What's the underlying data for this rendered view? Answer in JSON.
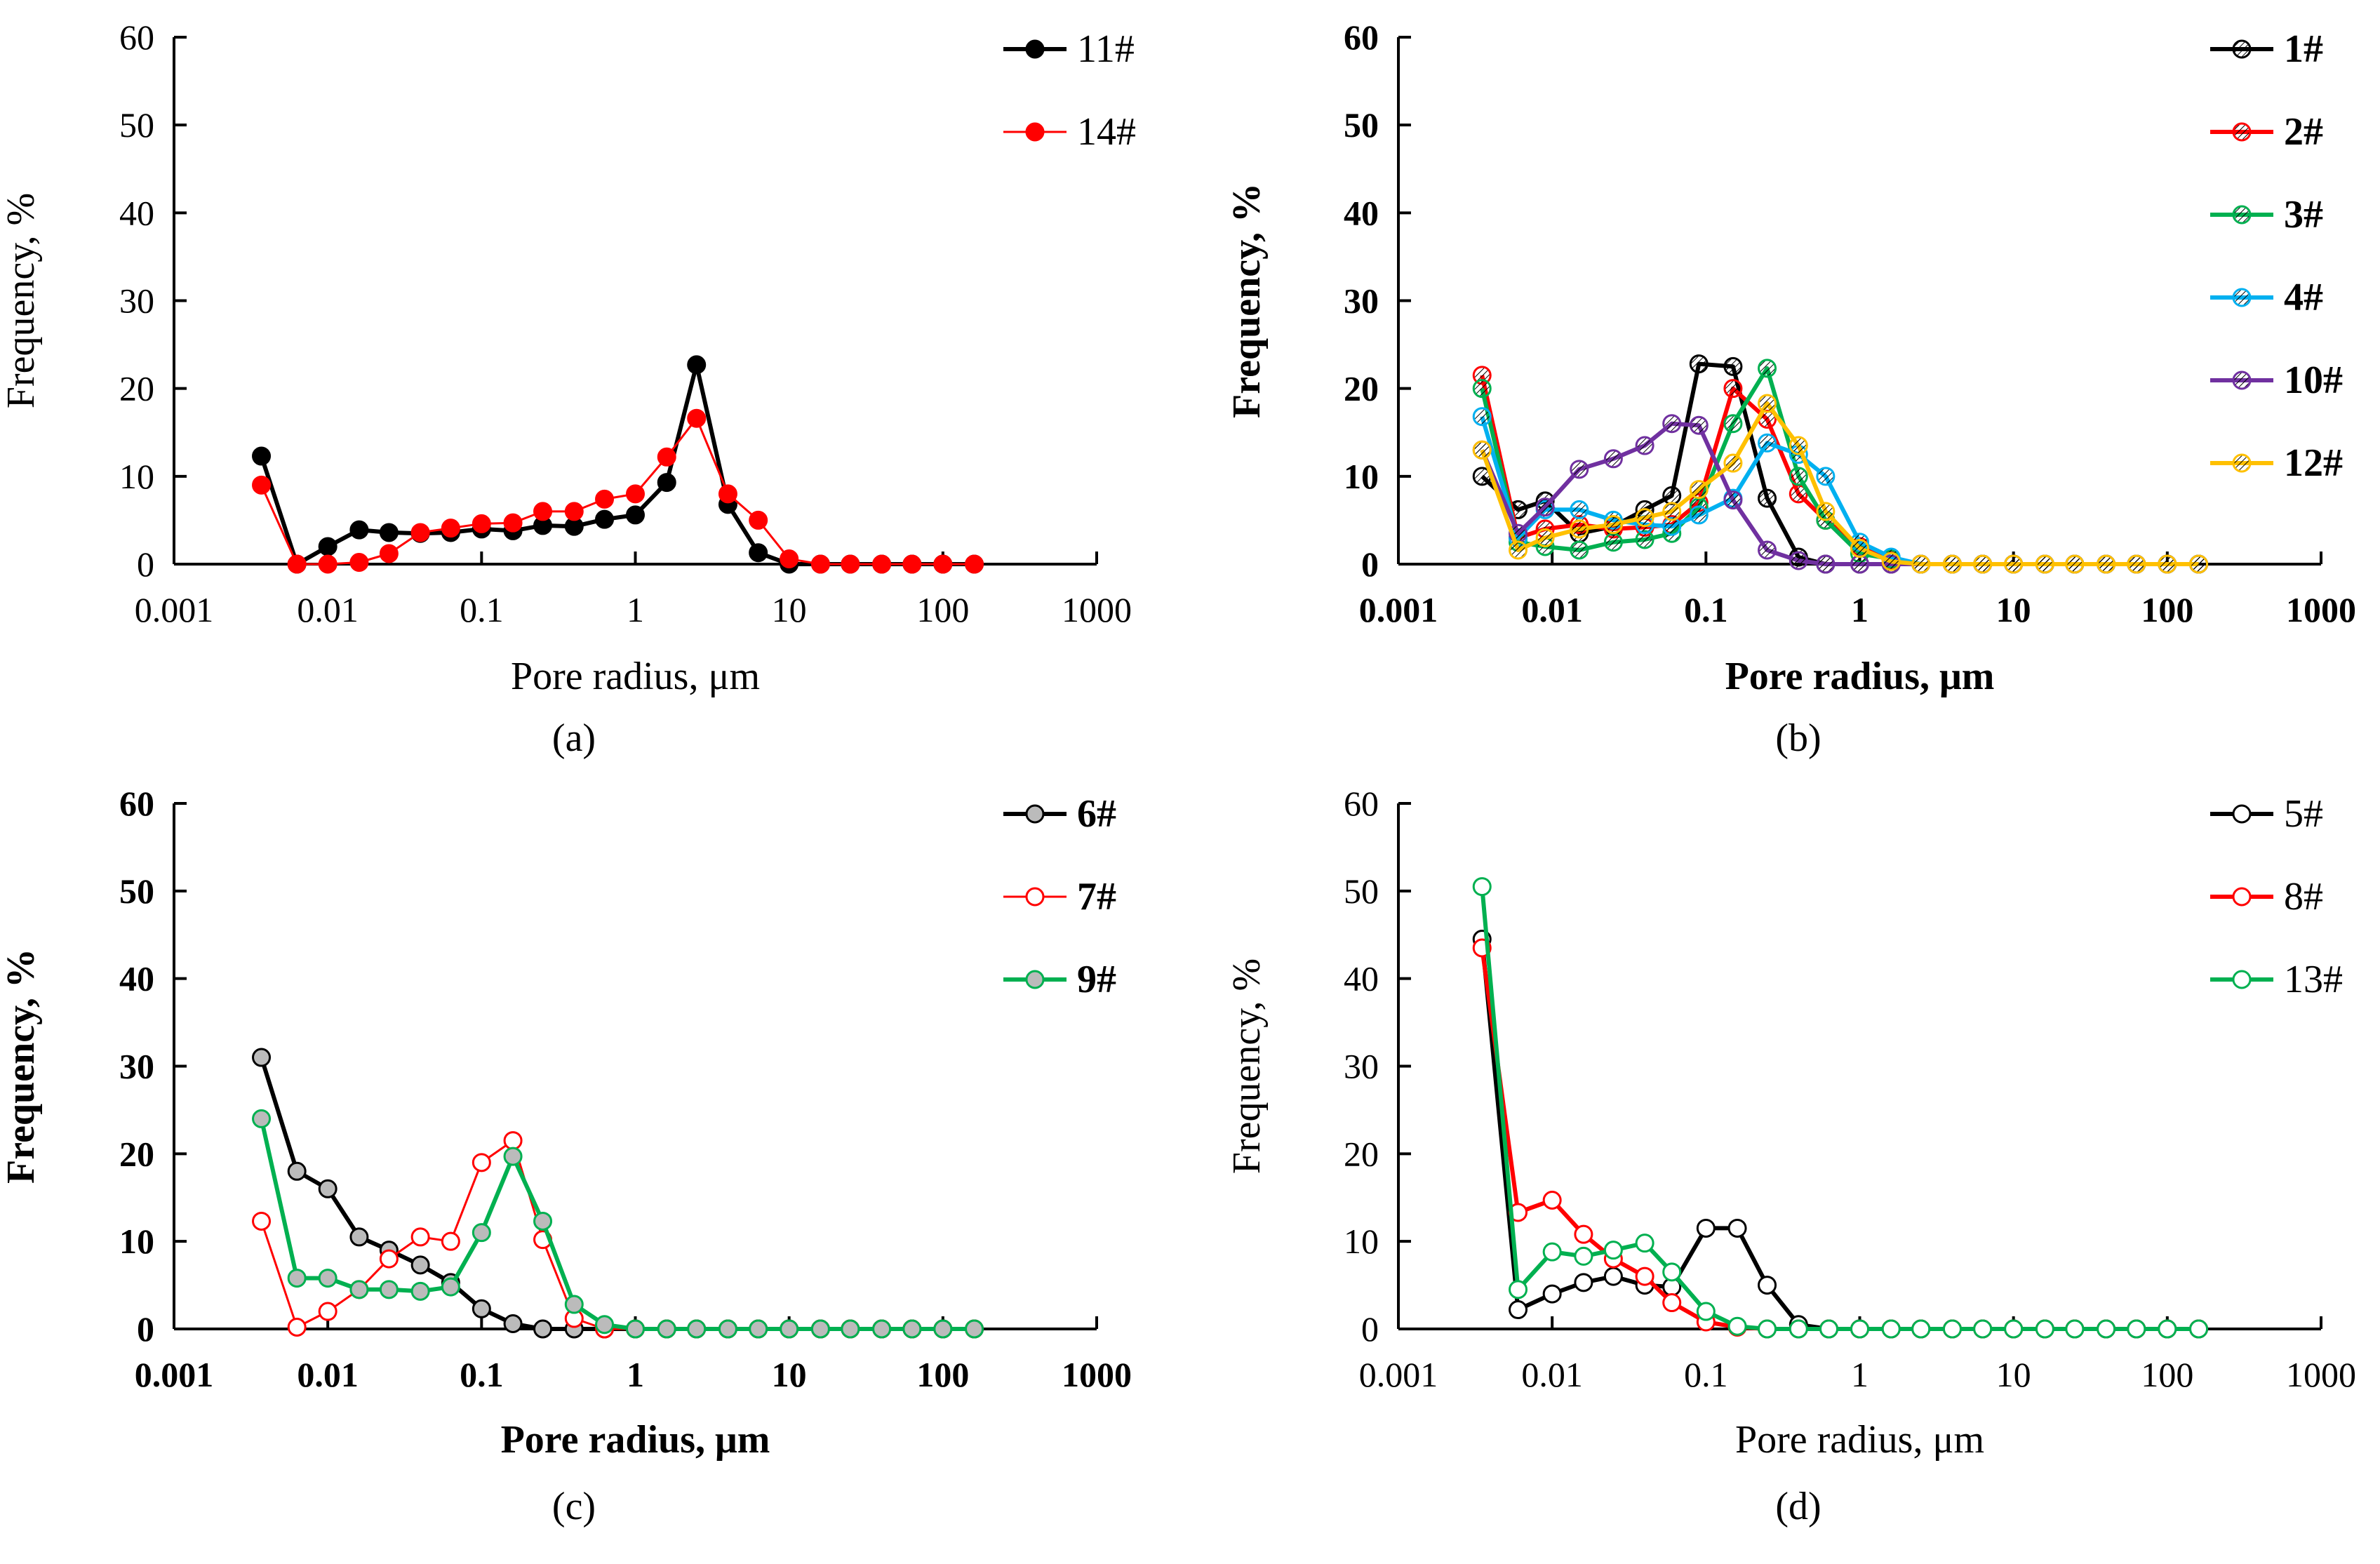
{
  "chart_data": [
    {
      "type": "line",
      "panel_label": "(a)",
      "panel_letter": "a",
      "xlabel": "Pore radius, μm",
      "ylabel": "Frequency, %",
      "xscale": "log",
      "xlim": [
        0.001,
        1000
      ],
      "ylim": [
        0,
        60
      ],
      "xticks": [
        "0.001",
        "0.01",
        "0.1",
        "1",
        "10",
        "100",
        "1000"
      ],
      "yticks": [
        "0",
        "10",
        "20",
        "30",
        "40",
        "50",
        "60"
      ],
      "legend_position": "top-right",
      "grid": false,
      "bold_axes": false,
      "x": [
        0.0037,
        0.0063,
        0.01,
        0.016,
        0.025,
        0.04,
        0.063,
        0.1,
        0.16,
        0.25,
        0.4,
        0.63,
        1.0,
        1.6,
        2.5,
        4.0,
        6.3,
        10,
        16,
        25,
        40,
        63,
        100,
        160
      ],
      "series": [
        {
          "name": "11#",
          "color": "#000000",
          "bold": true,
          "marker": "filled",
          "values": [
            12.3,
            0,
            2.0,
            3.9,
            3.6,
            3.5,
            3.6,
            4.0,
            3.8,
            4.4,
            4.3,
            5.1,
            5.6,
            9.3,
            22.7,
            6.8,
            1.3,
            0,
            0,
            0,
            0,
            0,
            0,
            0
          ]
        },
        {
          "name": "14#",
          "color": "#ff0000",
          "bold": false,
          "marker": "filled",
          "values": [
            9.0,
            0,
            0,
            0.2,
            1.2,
            3.6,
            4.1,
            4.6,
            4.7,
            6.0,
            6.0,
            7.4,
            8.0,
            12.2,
            16.6,
            8.0,
            5.0,
            0.6,
            0,
            0,
            0,
            0,
            0,
            0
          ]
        }
      ]
    },
    {
      "type": "line",
      "panel_label": "(b)",
      "panel_letter": "b",
      "xlabel": "Pore radius, μm",
      "ylabel": "Frequency, %",
      "xscale": "log",
      "xlim": [
        0.001,
        1000
      ],
      "ylim": [
        0,
        60
      ],
      "xticks": [
        "0.001",
        "0.01",
        "0.1",
        "1",
        "10",
        "100",
        "1000"
      ],
      "yticks": [
        "0",
        "10",
        "20",
        "30",
        "40",
        "50",
        "60"
      ],
      "legend_position": "top-right",
      "grid": false,
      "bold_axes": true,
      "x": [
        0.0035,
        0.006,
        0.009,
        0.015,
        0.025,
        0.04,
        0.06,
        0.09,
        0.15,
        0.25,
        0.4,
        0.6,
        1.0,
        1.6,
        2.5,
        4.0,
        6.3,
        10,
        16,
        25,
        40,
        63,
        100,
        160
      ],
      "series": [
        {
          "name": "1#",
          "color": "#000000",
          "bold": true,
          "marker": "hatched",
          "values": [
            10,
            6.2,
            7.2,
            3.5,
            4.3,
            6.2,
            7.8,
            22.8,
            22.5,
            7.5,
            0.8,
            0,
            0,
            0,
            0,
            0,
            0,
            0,
            0,
            0,
            0,
            0,
            0,
            0
          ]
        },
        {
          "name": "2#",
          "color": "#ff0000",
          "bold": true,
          "marker": "hatched",
          "values": [
            21.5,
            3,
            4.0,
            4.5,
            4.0,
            4.2,
            4.5,
            7.0,
            20.0,
            16.5,
            8.0,
            5.0,
            2.0,
            0.5,
            0,
            0,
            0,
            0,
            0,
            0,
            0,
            0,
            0,
            0
          ]
        },
        {
          "name": "3#",
          "color": "#00b050",
          "bold": true,
          "marker": "hatched",
          "values": [
            20,
            2.5,
            2.0,
            1.6,
            2.5,
            2.8,
            3.5,
            6.5,
            16.0,
            22.3,
            10.0,
            5.0,
            1.2,
            0.6,
            0,
            0,
            0,
            0,
            0,
            0,
            0,
            0,
            0,
            0
          ]
        },
        {
          "name": "4#",
          "color": "#00b0f0",
          "bold": true,
          "marker": "hatched",
          "values": [
            16.8,
            3,
            6.2,
            6.2,
            5.0,
            4.5,
            4.3,
            5.6,
            7.5,
            13.8,
            12.5,
            10.0,
            2.5,
            0.8,
            0,
            0,
            0,
            0,
            0,
            0,
            0,
            0,
            0,
            0
          ]
        },
        {
          "name": "10#",
          "color": "#7030a0",
          "bold": true,
          "marker": "hatched",
          "values": [
            13,
            3.5,
            6.5,
            10.8,
            12.0,
            13.5,
            16.0,
            15.8,
            7.3,
            1.6,
            0.4,
            0,
            0,
            0,
            0,
            0,
            0,
            0,
            0,
            0,
            0,
            0,
            0,
            0
          ]
        },
        {
          "name": "12#",
          "color": "#ffc000",
          "bold": true,
          "marker": "hatched",
          "values": [
            13,
            1.6,
            3.0,
            4.0,
            4.5,
            5.3,
            6.0,
            8.5,
            11.5,
            18.3,
            13.5,
            6.0,
            1.8,
            0.3,
            0,
            0,
            0,
            0,
            0,
            0,
            0,
            0,
            0,
            0
          ]
        }
      ]
    },
    {
      "type": "line",
      "panel_label": "(c)",
      "panel_letter": "c",
      "xlabel": "Pore radius, μm",
      "ylabel": "Frequency, %",
      "xscale": "log",
      "xlim": [
        0.001,
        1000
      ],
      "ylim": [
        0,
        60
      ],
      "xticks": [
        "0.001",
        "0.01",
        "0.1",
        "1",
        "10",
        "100",
        "1000"
      ],
      "yticks": [
        "0",
        "10",
        "20",
        "30",
        "40",
        "50",
        "60"
      ],
      "legend_position": "top-right",
      "grid": false,
      "bold_axes": true,
      "x": [
        0.0037,
        0.0063,
        0.01,
        0.016,
        0.025,
        0.04,
        0.063,
        0.1,
        0.16,
        0.25,
        0.4,
        0.63,
        1.0,
        1.6,
        2.5,
        4.0,
        6.3,
        10,
        16,
        25,
        40,
        63,
        100,
        160
      ],
      "series": [
        {
          "name": "6#",
          "color": "#000000",
          "bold": true,
          "marker": "dotted",
          "values": [
            31,
            18,
            16,
            10.5,
            9,
            7.3,
            5.3,
            2.3,
            0.6,
            0,
            0,
            0,
            0,
            0,
            0,
            0,
            0,
            0,
            0,
            0,
            0,
            0,
            0,
            0
          ]
        },
        {
          "name": "7#",
          "color": "#ff0000",
          "bold": false,
          "marker": "open",
          "values": [
            12.3,
            0.2,
            2.0,
            4.5,
            8.0,
            10.5,
            10.0,
            19.0,
            21.5,
            10.2,
            1.2,
            0,
            0,
            0,
            0,
            0,
            0,
            0,
            0,
            0,
            0,
            0,
            0,
            0
          ]
        },
        {
          "name": "9#",
          "color": "#00b050",
          "bold": true,
          "marker": "dotted",
          "values": [
            24,
            5.8,
            5.8,
            4.5,
            4.5,
            4.3,
            4.8,
            11.0,
            19.7,
            12.3,
            2.8,
            0.5,
            0,
            0,
            0,
            0,
            0,
            0,
            0,
            0,
            0,
            0,
            0,
            0
          ]
        }
      ]
    },
    {
      "type": "line",
      "panel_label": "(d)",
      "panel_letter": "d",
      "xlabel": "Pore radius, μm",
      "ylabel": "Frequency, %",
      "xscale": "log",
      "xlim": [
        0.001,
        1000
      ],
      "ylim": [
        0,
        60
      ],
      "xticks": [
        "0.001",
        "0.01",
        "0.1",
        "1",
        "10",
        "100",
        "1000"
      ],
      "yticks": [
        "0",
        "10",
        "20",
        "30",
        "40",
        "50",
        "60"
      ],
      "legend_position": "top-right",
      "grid": false,
      "bold_axes": false,
      "x": [
        0.0035,
        0.006,
        0.01,
        0.016,
        0.025,
        0.04,
        0.06,
        0.1,
        0.16,
        0.25,
        0.4,
        0.63,
        1.0,
        1.6,
        2.5,
        4.0,
        6.3,
        10,
        16,
        25,
        40,
        63,
        100,
        160
      ],
      "series": [
        {
          "name": "5#",
          "color": "#000000",
          "bold": true,
          "marker": "open",
          "values": [
            44.5,
            2.2,
            4.0,
            5.3,
            6.0,
            5.0,
            4.8,
            11.5,
            11.5,
            5.0,
            0.5,
            0,
            0,
            0,
            0,
            0,
            0,
            0,
            0,
            0,
            0,
            0,
            0,
            0
          ]
        },
        {
          "name": "8#",
          "color": "#ff0000",
          "bold": true,
          "marker": "open",
          "values": [
            43.5,
            13.3,
            14.7,
            10.8,
            8.0,
            6.0,
            3.0,
            0.8,
            0.2,
            0,
            0,
            0,
            0,
            0,
            0,
            0,
            0,
            0,
            0,
            0,
            0,
            0,
            0,
            0
          ]
        },
        {
          "name": "13#",
          "color": "#00b050",
          "bold": true,
          "marker": "open",
          "values": [
            50.5,
            4.5,
            8.8,
            8.3,
            9.0,
            9.8,
            6.5,
            2.0,
            0.3,
            0,
            0,
            0,
            0,
            0,
            0,
            0,
            0,
            0,
            0,
            0,
            0,
            0,
            0,
            0
          ]
        }
      ]
    }
  ]
}
